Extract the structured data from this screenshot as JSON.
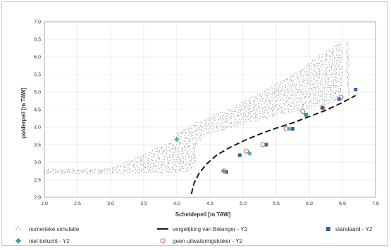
{
  "chart_data": {
    "type": "scatter",
    "xlabel": "Scheldepeil [m TAW]",
    "ylabel": "polderpeil [m TAW]",
    "xlim": [
      2.0,
      7.0
    ],
    "ylim": [
      2.0,
      7.0
    ],
    "x_ticks": [
      "2.0",
      "2.5",
      "3.0",
      "3.5",
      "4.0",
      "4.5",
      "5.0",
      "5.5",
      "6.0",
      "6.5",
      "7.0"
    ],
    "y_ticks": [
      "2.0",
      "2.5",
      "3.0",
      "3.5",
      "4.0",
      "4.5",
      "5.0",
      "5.5",
      "6.0",
      "6.5",
      "7.0"
    ],
    "grid": true,
    "legend_position": "bottom",
    "series": [
      {
        "name": "numerieke simulatie",
        "kind": "cloud",
        "color": "#808080",
        "region_lower": [
          [
            2.0,
            2.7
          ],
          [
            3.0,
            2.7
          ],
          [
            3.5,
            2.72
          ],
          [
            4.0,
            2.74
          ],
          [
            4.2,
            2.76
          ],
          [
            4.27,
            2.9
          ],
          [
            4.3,
            3.5
          ],
          [
            4.4,
            3.8
          ],
          [
            4.8,
            4.0
          ],
          [
            5.2,
            4.2
          ],
          [
            5.6,
            4.4
          ],
          [
            6.0,
            4.55
          ],
          [
            6.3,
            4.7
          ],
          [
            6.55,
            4.9
          ],
          [
            6.6,
            5.5
          ],
          [
            6.6,
            6.2
          ],
          [
            6.5,
            6.4
          ]
        ],
        "region_upper": [
          [
            2.0,
            2.78
          ],
          [
            3.0,
            2.8
          ],
          [
            3.5,
            3.2
          ],
          [
            3.9,
            3.55
          ],
          [
            4.0,
            3.8
          ],
          [
            4.3,
            4.1
          ],
          [
            4.8,
            4.5
          ],
          [
            5.2,
            4.9
          ],
          [
            5.6,
            5.3
          ],
          [
            6.0,
            5.8
          ],
          [
            6.3,
            6.2
          ],
          [
            6.5,
            6.4
          ]
        ]
      },
      {
        "name": "vergelijking van Belanger - Y2",
        "kind": "line",
        "color": "#1a1a1a",
        "x": [
          4.22,
          4.26,
          4.34,
          4.45,
          4.6,
          4.8,
          5.0,
          5.25,
          5.5,
          5.75,
          6.0,
          6.25,
          6.5,
          6.7
        ],
        "y": [
          2.1,
          2.4,
          2.7,
          2.95,
          3.2,
          3.42,
          3.6,
          3.8,
          3.97,
          4.12,
          4.3,
          4.48,
          4.7,
          4.9
        ]
      },
      {
        "name": "standaard - Y2",
        "kind": "squares",
        "color": "#3a5da8",
        "x": [
          4.75,
          4.95,
          5.35,
          5.75,
          5.95,
          6.2,
          6.45,
          6.7
        ],
        "y": [
          2.72,
          3.2,
          3.5,
          3.95,
          4.35,
          4.55,
          4.8,
          5.07
        ]
      },
      {
        "name": "niet belucht - Y2",
        "kind": "diamonds",
        "color": "#2aa59a",
        "x": [
          4.0,
          4.7,
          5.1,
          5.7,
          5.95
        ],
        "y": [
          3.65,
          2.75,
          3.25,
          3.95,
          4.35
        ]
      },
      {
        "name": "geen uitwateringskoker - Y2",
        "kind": "circles",
        "color": "#d06070",
        "x": [
          4.72,
          5.05,
          5.3,
          5.65,
          5.9,
          6.2,
          6.48
        ],
        "y": [
          2.75,
          3.32,
          3.5,
          3.95,
          4.45,
          4.55,
          4.85
        ]
      }
    ]
  }
}
